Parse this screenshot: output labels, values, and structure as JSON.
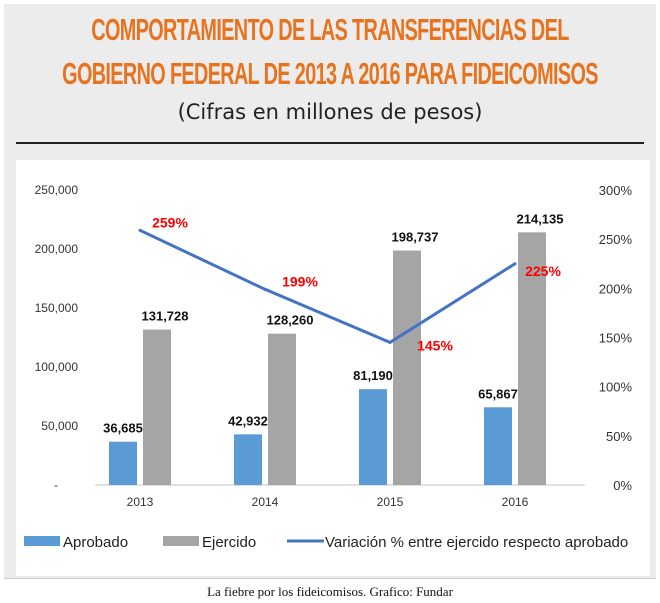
{
  "title_lines": [
    "COMPORTAMIENTO DE LAS TRANSFERENCIAS DEL",
    "GOBIERNO FEDERAL DE 2013 A 2016 PARA FIDEICOMISOS"
  ],
  "subtitle": "(Cifras en millones de pesos)",
  "caption": "La fiebre por los fideicomisos. Grafico: Fundar",
  "chart_data": {
    "type": "bar+line",
    "categories": [
      "2013",
      "2014",
      "2015",
      "2016"
    ],
    "series": [
      {
        "name": "Aprobado",
        "type": "bar",
        "axis": "left",
        "color": "#5b9bd5",
        "values": [
          36685,
          42932,
          81190,
          65867
        ],
        "labels": [
          "36,685",
          "42,932",
          "81,190",
          "65,867"
        ]
      },
      {
        "name": "Ejercido",
        "type": "bar",
        "axis": "left",
        "color": "#a5a5a5",
        "values": [
          131728,
          128260,
          198737,
          214135
        ],
        "labels": [
          "131,728",
          "128,260",
          "198,737",
          "214,135"
        ]
      },
      {
        "name": "Variación % entre ejercido respecto aprobado",
        "type": "line",
        "axis": "right",
        "color": "#4472c4",
        "label_color": "#ff0000",
        "values": [
          259,
          199,
          145,
          225
        ],
        "labels": [
          "259%",
          "199%",
          "145%",
          "225%"
        ]
      }
    ],
    "left_axis": {
      "range": [
        0,
        250000
      ],
      "ticks": [
        "-",
        "50,000",
        "100,000",
        "150,000",
        "200,000",
        "250,000"
      ]
    },
    "right_axis": {
      "range": [
        0,
        300
      ],
      "ticks": [
        "0%",
        "50%",
        "100%",
        "150%",
        "200%",
        "250%",
        "300%"
      ]
    },
    "grid": false,
    "legend_placement": "bottom"
  }
}
